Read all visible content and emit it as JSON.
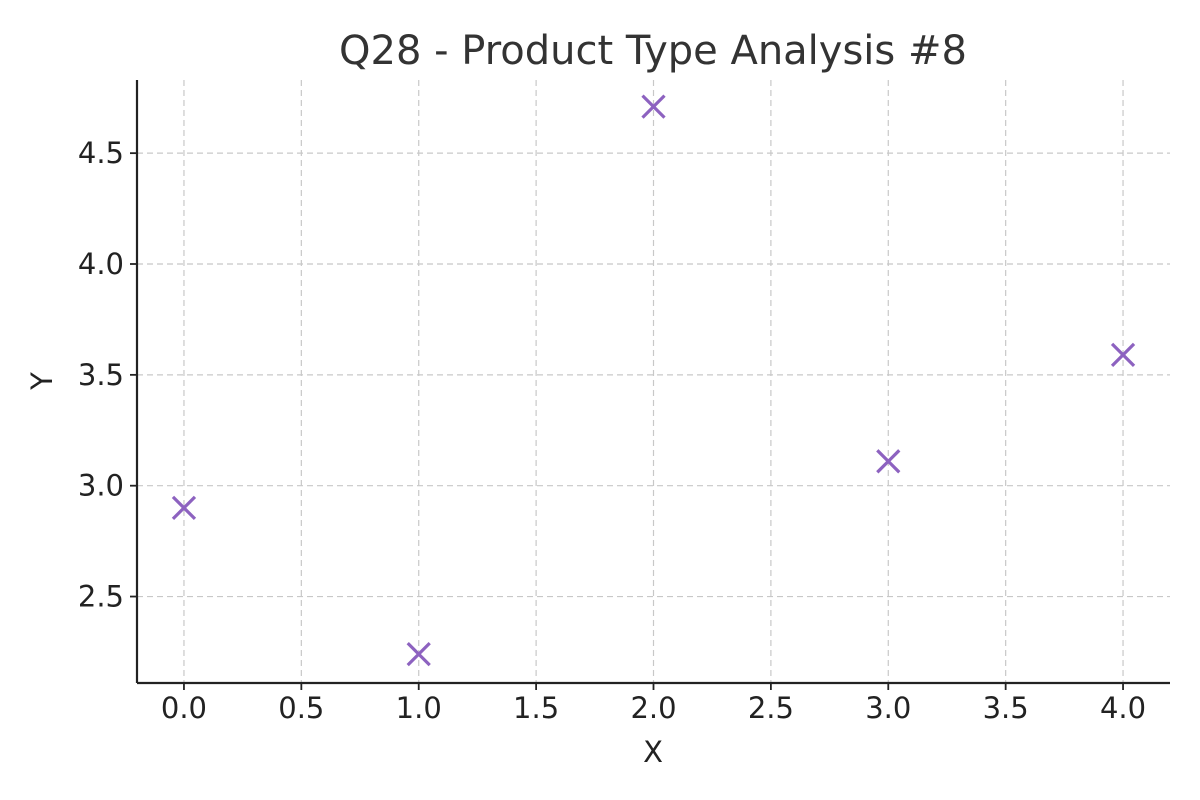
{
  "chart_data": {
    "type": "scatter",
    "title": "Q28 - Product Type Analysis #8",
    "xlabel": "X",
    "ylabel": "Y",
    "xlim": [
      -0.2,
      4.2
    ],
    "ylim": [
      2.11,
      4.83
    ],
    "x_ticks": [
      0.0,
      0.5,
      1.0,
      1.5,
      2.0,
      2.5,
      3.0,
      3.5,
      4.0
    ],
    "x_tick_labels": [
      "0.0",
      "0.5",
      "1.0",
      "1.5",
      "2.0",
      "2.5",
      "3.0",
      "3.5",
      "4.0"
    ],
    "y_ticks": [
      2.5,
      3.0,
      3.5,
      4.0,
      4.5
    ],
    "y_tick_labels": [
      "2.5",
      "3.0",
      "3.5",
      "4.0",
      "4.5"
    ],
    "grid": true,
    "marker": "x",
    "marker_color": "#8d62c0",
    "series": [
      {
        "x": [
          0,
          1,
          2,
          3,
          4
        ],
        "y": [
          2.9,
          2.24,
          4.71,
          3.11,
          3.59
        ]
      }
    ]
  }
}
